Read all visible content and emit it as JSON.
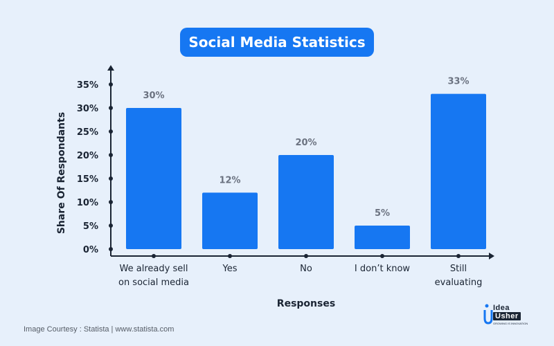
{
  "title": "Social Media Statistics",
  "chart_data": {
    "type": "bar",
    "categories": [
      [
        "We already sell",
        "on social media"
      ],
      [
        "Yes"
      ],
      [
        "No"
      ],
      [
        "I don’t know"
      ],
      [
        "Still",
        "evaluating"
      ]
    ],
    "values": [
      30,
      12,
      20,
      5,
      33
    ],
    "data_labels": [
      "30%",
      "12%",
      "20%",
      "5%",
      "33%"
    ],
    "xlabel": "Responses",
    "ylabel": "Share Of Respondants",
    "ylim": [
      0,
      35
    ],
    "yticks": [
      0,
      5,
      10,
      15,
      20,
      25,
      30,
      35
    ],
    "ytick_labels": [
      "0%",
      "5%",
      "10%",
      "15%",
      "20%",
      "25%",
      "30%",
      "35%"
    ],
    "grid": false,
    "colors": {
      "bar": "#1677f2",
      "axis": "#1a2433",
      "label": "#6b7280",
      "text": "#1a2433"
    }
  },
  "footer": {
    "courtesy": "Image Courtesy : Statista | www.statista.com",
    "logo_top": "Idea",
    "logo_bottom": "Usher",
    "logo_tagline": "GROWING IS INNOVATION"
  }
}
